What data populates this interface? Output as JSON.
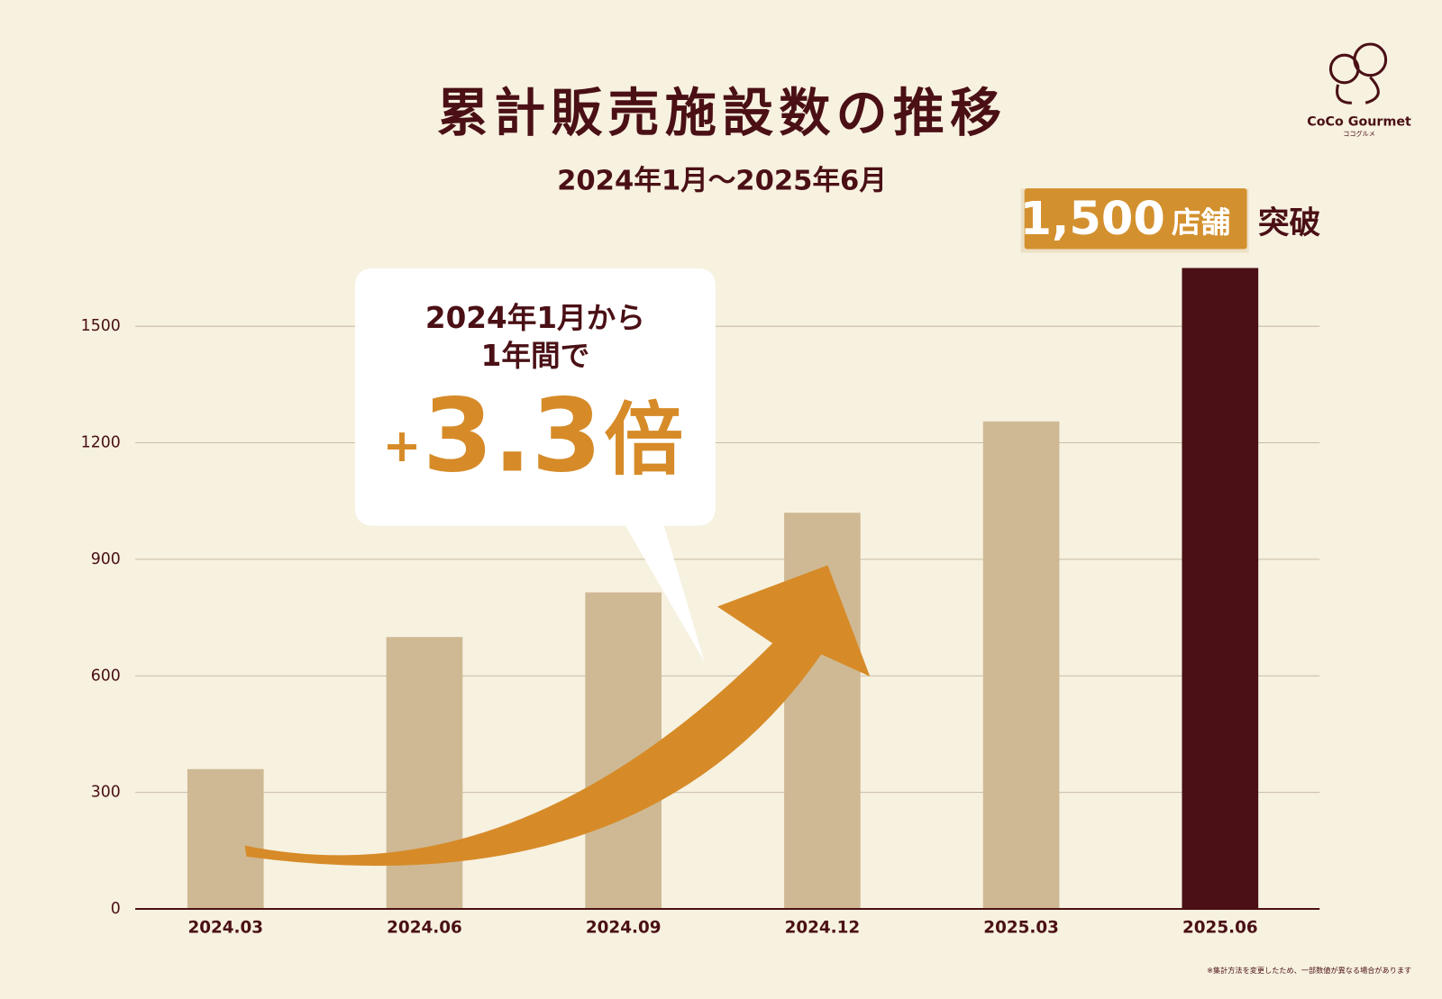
{
  "chart_data": {
    "type": "bar",
    "title": "累計販売施設数の推移",
    "subtitle": "2024年1月～2025年6月",
    "badge": {
      "number": "1,500",
      "unit": "店舗",
      "suffix": "突破"
    },
    "callout": {
      "lines": [
        "2024年1月から",
        "1年間で"
      ],
      "sign": "+",
      "number": "3.3",
      "unit": "倍"
    },
    "logo": {
      "name": "CoCo Gourmet",
      "kana": "ココグルメ"
    },
    "footnote": "※集計方法を変更したため、一部数値が異なる場合があります",
    "categories": [
      "2024.03",
      "2024.06",
      "2024.09",
      "2024.12",
      "2025.03",
      "2025.06"
    ],
    "values": [
      360,
      700,
      815,
      1020,
      1255,
      1650
    ],
    "colors": [
      "#cfb994",
      "#cfb994",
      "#cfb994",
      "#cfb994",
      "#cfb994",
      "#4a1015"
    ],
    "ylim": [
      0,
      1650
    ],
    "yticks": [
      0,
      300,
      600,
      900,
      1200,
      1500
    ],
    "grid": true
  }
}
